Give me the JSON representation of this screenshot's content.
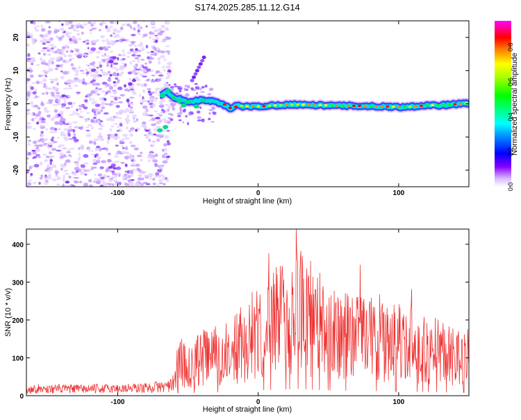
{
  "title": "S174.2025.285.11.12.G14",
  "chart_data": [
    {
      "type": "heatmap",
      "xlabel": "Height of straight line (km)",
      "ylabel": "Frequency (Hz)",
      "xlim": [
        -165,
        150
      ],
      "ylim": [
        -25,
        25
      ],
      "xticks": [
        -100,
        0,
        100
      ],
      "yticks": [
        -20,
        -10,
        0,
        10,
        20
      ],
      "ridge": {
        "x": [
          -70,
          -65,
          -60,
          -55,
          -50,
          -45,
          -40,
          -35,
          -30,
          -25,
          -20,
          -15,
          -10,
          -5,
          0,
          10,
          20,
          30,
          40,
          50,
          60,
          70,
          80,
          90,
          100,
          110,
          120,
          130,
          140,
          150
        ],
        "freq": [
          2.5,
          3.5,
          2,
          1.2,
          0.5,
          0.8,
          1.2,
          1,
          0.4,
          -0.2,
          -1.5,
          -0.5,
          -0.8,
          -0.8,
          -0.8,
          -0.5,
          -0.3,
          -0.2,
          -0.4,
          -0.5,
          -0.6,
          -0.6,
          -0.8,
          -0.8,
          -1,
          -0.8,
          -0.4,
          -0.5,
          -0.1,
          0.2
        ]
      },
      "colorbar": {
        "label": "Normalized spectral amplitude",
        "range": [
          0,
          0.95
        ],
        "ticks": [
          0,
          0.2,
          0.4,
          0.6,
          0.8
        ]
      }
    },
    {
      "type": "line",
      "xlabel": "Height of straight line (km)",
      "ylabel": "SNR (10 * v/v)",
      "xlim": [
        -165,
        150
      ],
      "ylim": [
        0,
        440
      ],
      "xticks": [
        -100,
        0,
        100
      ],
      "yticks": [
        0,
        100,
        200,
        300,
        400
      ],
      "series": [
        {
          "name": "SNR",
          "color": "#ee3333",
          "envelope_x": [
            -165,
            -140,
            -120,
            -100,
            -80,
            -70,
            -62,
            -58,
            -55,
            -50,
            -45,
            -40,
            -30,
            -20,
            -10,
            0,
            10,
            20,
            30,
            40,
            50,
            60,
            80,
            100,
            120,
            140,
            150
          ],
          "envelope_y": [
            20,
            20,
            20,
            21,
            23,
            26,
            30,
            90,
            150,
            110,
            150,
            160,
            170,
            175,
            230,
            270,
            300,
            330,
            360,
            310,
            280,
            270,
            250,
            220,
            200,
            170,
            160
          ]
        }
      ]
    }
  ]
}
